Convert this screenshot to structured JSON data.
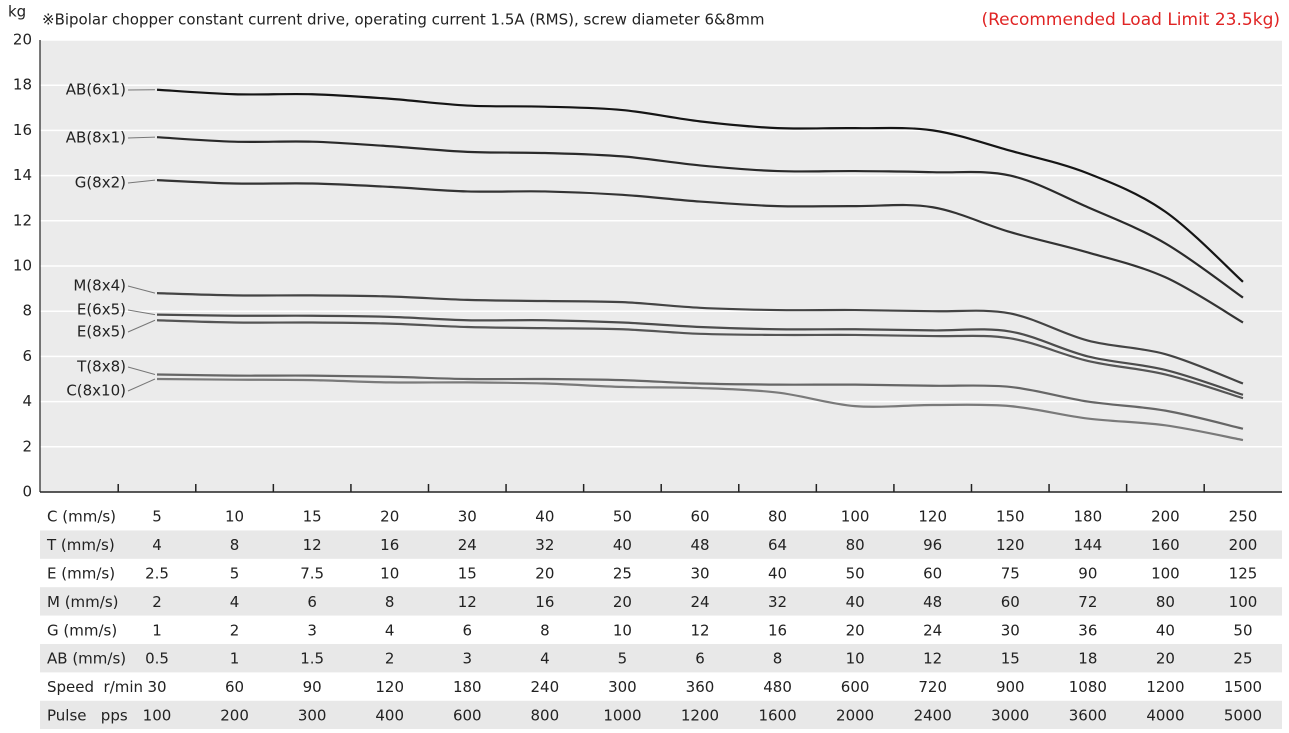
{
  "chart_data": {
    "type": "line",
    "title": "※Bipolar chopper constant current drive, operating current 1.5A (RMS), screw diameter 6&8mm",
    "subtitle": "(Recommended Load Limit 23.5kg)",
    "y_label": "kg",
    "ylim": [
      0,
      20
    ],
    "yticks": [
      0,
      2,
      4,
      6,
      8,
      10,
      12,
      14,
      16,
      18,
      20
    ],
    "grid": true,
    "series": [
      {
        "name": "AB(6x1)",
        "color": "#151515",
        "values": [
          17.8,
          17.6,
          17.6,
          17.4,
          17.1,
          17.05,
          16.9,
          16.4,
          16.1,
          16.1,
          16.0,
          15.1,
          14.1,
          12.4,
          9.3
        ]
      },
      {
        "name": "AB(8x1)",
        "color": "#2a2a2a",
        "values": [
          15.7,
          15.5,
          15.5,
          15.3,
          15.05,
          15.0,
          14.85,
          14.45,
          14.2,
          14.2,
          14.15,
          14.0,
          12.6,
          11.0,
          8.6
        ]
      },
      {
        "name": "G(8x2)",
        "color": "#333333",
        "values": [
          13.8,
          13.65,
          13.65,
          13.5,
          13.3,
          13.3,
          13.15,
          12.85,
          12.65,
          12.65,
          12.6,
          11.5,
          10.6,
          9.5,
          7.5
        ]
      },
      {
        "name": "M(8x4)",
        "color": "#444444",
        "values": [
          8.8,
          8.7,
          8.7,
          8.65,
          8.5,
          8.45,
          8.4,
          8.15,
          8.05,
          8.05,
          8.0,
          7.9,
          6.7,
          6.1,
          4.8
        ]
      },
      {
        "name": "E(6x5)",
        "color": "#4c4c4c",
        "values": [
          7.85,
          7.8,
          7.8,
          7.75,
          7.6,
          7.6,
          7.5,
          7.3,
          7.2,
          7.2,
          7.15,
          7.1,
          6.0,
          5.4,
          4.3
        ]
      },
      {
        "name": "E(8x5)",
        "color": "#555555",
        "values": [
          7.6,
          7.5,
          7.5,
          7.45,
          7.3,
          7.25,
          7.2,
          7.0,
          6.95,
          6.95,
          6.9,
          6.8,
          5.8,
          5.2,
          4.15
        ]
      },
      {
        "name": "T(8x8)",
        "color": "#666666",
        "values": [
          5.2,
          5.15,
          5.15,
          5.1,
          5.0,
          5.0,
          4.95,
          4.8,
          4.75,
          4.75,
          4.7,
          4.65,
          4.0,
          3.6,
          2.8
        ]
      },
      {
        "name": "C(8x10)",
        "color": "#7a7a7a",
        "values": [
          5.0,
          4.97,
          4.95,
          4.85,
          4.85,
          4.8,
          4.65,
          4.6,
          4.4,
          3.8,
          3.85,
          3.8,
          3.25,
          2.95,
          2.3
        ]
      }
    ]
  },
  "table": {
    "rows": [
      [
        "C (mm/s)",
        "5",
        "10",
        "15",
        "20",
        "30",
        "40",
        "50",
        "60",
        "80",
        "100",
        "120",
        "150",
        "180",
        "200",
        "250"
      ],
      [
        "T (mm/s)",
        "4",
        "8",
        "12",
        "16",
        "24",
        "32",
        "40",
        "48",
        "64",
        "80",
        "96",
        "120",
        "144",
        "160",
        "200"
      ],
      [
        "E (mm/s)",
        "2.5",
        "5",
        "7.5",
        "10",
        "15",
        "20",
        "25",
        "30",
        "40",
        "50",
        "60",
        "75",
        "90",
        "100",
        "125"
      ],
      [
        "M (mm/s)",
        "2",
        "4",
        "6",
        "8",
        "12",
        "16",
        "20",
        "24",
        "32",
        "40",
        "48",
        "60",
        "72",
        "80",
        "100"
      ],
      [
        "G (mm/s)",
        "1",
        "2",
        "3",
        "4",
        "6",
        "8",
        "10",
        "12",
        "16",
        "20",
        "24",
        "30",
        "36",
        "40",
        "50"
      ],
      [
        "AB (mm/s)",
        "0.5",
        "1",
        "1.5",
        "2",
        "3",
        "4",
        "5",
        "6",
        "8",
        "10",
        "12",
        "15",
        "18",
        "20",
        "25"
      ],
      [
        "Speed  r/min",
        "30",
        "60",
        "90",
        "120",
        "180",
        "240",
        "300",
        "360",
        "480",
        "600",
        "720",
        "900",
        "1080",
        "1200",
        "1500"
      ],
      [
        "Pulse   pps",
        "100",
        "200",
        "300",
        "400",
        "600",
        "800",
        "1000",
        "1200",
        "1600",
        "2000",
        "2400",
        "3000",
        "3600",
        "4000",
        "5000"
      ]
    ]
  }
}
